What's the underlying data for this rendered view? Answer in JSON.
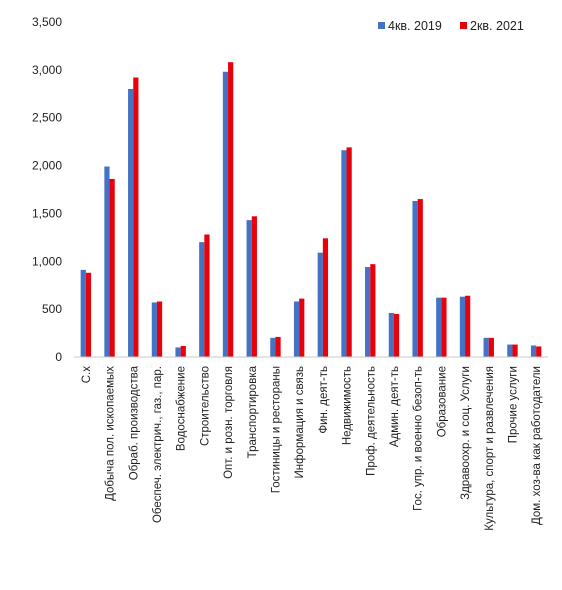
{
  "chart_data": {
    "type": "bar",
    "title": "",
    "xlabel": "",
    "ylabel": "",
    "ylim": [
      0,
      3500
    ],
    "yticks": [
      "0",
      "500",
      "1,000",
      "1,500",
      "2,000",
      "2,500",
      "3,000",
      "3,500"
    ],
    "grid": false,
    "legend_position": "top-right",
    "categories": [
      "С.х",
      "Добыча пол. ископаемых",
      "Обраб. производства",
      "Обеспеч. электрич., газ., пар.",
      "Водоснабжение",
      "Строительство",
      "Опт. и розн. торговля",
      "Транспортировка",
      "Гостиницы и рестораны",
      "Информация и связь",
      "Фин. деят-ть",
      "Недвижимость",
      "Проф. деятельность",
      "Админ. деят-ть",
      "Гос. упр. и военно безоп-ть",
      "Образование",
      "Здравоохр. и соц. Услуги",
      "Культура, спорт и развлечения",
      "Прочие услуги",
      "Дом. хоз-ва как работодатели"
    ],
    "series": [
      {
        "name": "4кв. 2019",
        "color": "#4472c4",
        "values": [
          910,
          1990,
          2800,
          570,
          100,
          1200,
          2980,
          1430,
          200,
          580,
          1090,
          2160,
          940,
          460,
          1630,
          620,
          630,
          200,
          130,
          120
        ]
      },
      {
        "name": "2кв. 2021",
        "color": "#e8000b",
        "values": [
          880,
          1860,
          2920,
          580,
          115,
          1280,
          3080,
          1470,
          210,
          610,
          1240,
          2190,
          970,
          450,
          1650,
          620,
          640,
          200,
          130,
          110
        ]
      }
    ]
  }
}
